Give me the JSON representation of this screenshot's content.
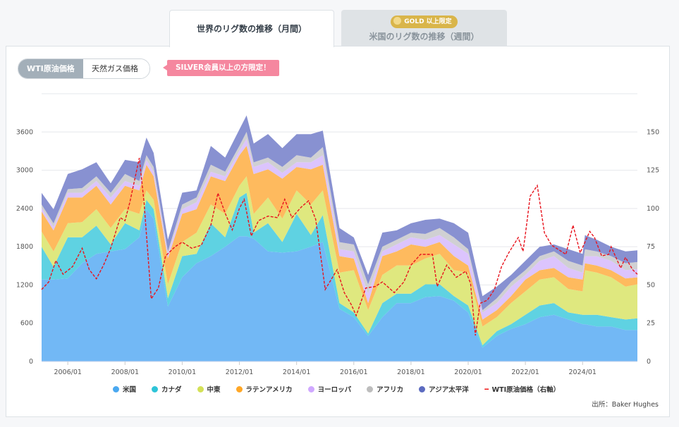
{
  "tabs": [
    {
      "label": "世界のリグ数の推移（月間）",
      "active": true
    },
    {
      "label": "米国のリグ数の推移（週間）",
      "badge": "GOLD 以上限定",
      "active": false
    }
  ],
  "toggle": {
    "options": [
      "WTI原油価格",
      "天然ガス価格"
    ],
    "selected": "WTI原油価格"
  },
  "notice": "SILVER会員以上の方限定！",
  "source": "出所：Baker Hughes",
  "chart_data": {
    "type": "area",
    "stacked": true,
    "left_axis": {
      "ticks": [
        "0",
        "600",
        "1200",
        "1800",
        "2400",
        "3000",
        "3600"
      ],
      "ylim": [
        0,
        4200
      ]
    },
    "right_axis": {
      "ticks": [
        "0",
        "25",
        "50",
        "75",
        "100",
        "125",
        "150"
      ],
      "ylim": [
        0,
        175
      ]
    },
    "x_ticks": [
      "2006/01",
      "2008/01",
      "2010/01",
      "2012/01",
      "2014/01",
      "2016/01",
      "2018/01",
      "2020/01",
      "2022/01",
      "2024/01"
    ],
    "xlim": [
      "2005/02",
      "2025/12"
    ],
    "grid": true,
    "legend_position": "bottom",
    "x": [
      "2005/02",
      "2005/07",
      "2006/01",
      "2006/07",
      "2007/01",
      "2007/07",
      "2008/01",
      "2008/07",
      "2008/10",
      "2009/01",
      "2009/07",
      "2010/01",
      "2010/07",
      "2011/01",
      "2011/07",
      "2012/01",
      "2012/04",
      "2012/07",
      "2013/01",
      "2013/07",
      "2014/01",
      "2014/07",
      "2014/12",
      "2015/07",
      "2016/01",
      "2016/07",
      "2017/01",
      "2017/07",
      "2018/01",
      "2018/07",
      "2019/01",
      "2019/07",
      "2020/01",
      "2020/07",
      "2021/01",
      "2021/07",
      "2022/01",
      "2022/07",
      "2023/01",
      "2023/07",
      "2024/01",
      "2024/02",
      "2024/07",
      "2025/01",
      "2025/07",
      "2025/12"
    ],
    "series": [
      {
        "name": "米国",
        "color": "#72b8f5",
        "legend_color": "#4aa8f0",
        "values": [
          1284,
          1284,
          1303,
          1542,
          1689,
          1726,
          1763,
          1947,
          2388,
          2241,
          861,
          1321,
          1542,
          1652,
          1800,
          1965,
          1965,
          1928,
          1726,
          1708,
          1726,
          1800,
          1873,
          824,
          695,
          401,
          695,
          916,
          916,
          1008,
          1027,
          953,
          769,
          217,
          401,
          512,
          585,
          695,
          732,
          659,
          585,
          585,
          548,
          548,
          493,
          493
        ]
      },
      {
        "name": "カナダ",
        "color": "#5fd2e2",
        "legend_color": "#2ec4d8",
        "values": [
          515,
          202,
          644,
          405,
          442,
          110,
          405,
          110,
          147,
          147,
          129,
          331,
          147,
          515,
          147,
          607,
          681,
          92,
          442,
          166,
          589,
          184,
          423,
          92,
          74,
          37,
          221,
          147,
          147,
          202,
          184,
          74,
          110,
          37,
          74,
          74,
          147,
          184,
          184,
          110,
          147,
          147,
          184,
          147,
          166,
          184
        ]
      },
      {
        "name": "中東",
        "color": "#dfe87f",
        "legend_color": "#d4e157",
        "values": [
          239,
          239,
          221,
          239,
          258,
          258,
          221,
          258,
          147,
          147,
          221,
          221,
          331,
          294,
          368,
          184,
          258,
          294,
          405,
          368,
          368,
          478,
          386,
          478,
          662,
          368,
          442,
          442,
          442,
          405,
          478,
          405,
          515,
          294,
          221,
          331,
          368,
          405,
          405,
          368,
          368,
          699,
          662,
          626,
          515,
          533
        ]
      },
      {
        "name": "ラテンアメリカ",
        "color": "#feba5e",
        "legend_color": "#ffa726",
        "values": [
          313,
          331,
          405,
          386,
          368,
          368,
          368,
          368,
          405,
          368,
          405,
          442,
          368,
          442,
          515,
          478,
          478,
          626,
          442,
          626,
          368,
          552,
          405,
          258,
          184,
          110,
          294,
          221,
          331,
          184,
          184,
          221,
          110,
          110,
          110,
          110,
          184,
          147,
          147,
          184,
          184,
          110,
          110,
          110,
          129,
          110
        ]
      },
      {
        "name": "ヨーロッパ",
        "color": "#dcc4fd",
        "legend_color": "#d0a8ff",
        "values": [
          55,
          55,
          74,
          74,
          74,
          110,
          74,
          74,
          74,
          74,
          74,
          74,
          110,
          74,
          74,
          74,
          110,
          110,
          110,
          92,
          74,
          110,
          147,
          110,
          110,
          147,
          74,
          110,
          110,
          110,
          110,
          184,
          184,
          110,
          110,
          147,
          74,
          147,
          184,
          147,
          110,
          110,
          147,
          147,
          129,
          129
        ]
      },
      {
        "name": "アフリカ",
        "color": "#d0d0d3",
        "legend_color": "#bdbdbd",
        "values": [
          55,
          55,
          55,
          74,
          74,
          74,
          110,
          74,
          74,
          74,
          37,
          74,
          74,
          110,
          74,
          74,
          110,
          74,
          74,
          92,
          110,
          74,
          129,
          110,
          110,
          147,
          74,
          74,
          74,
          92,
          110,
          110,
          74,
          37,
          74,
          74,
          74,
          74,
          74,
          110,
          110,
          110,
          74,
          74,
          110,
          110
        ]
      },
      {
        "name": "アジア太平洋",
        "color": "#8891d1",
        "legend_color": "#5c6bc0",
        "values": [
          184,
          221,
          239,
          294,
          221,
          147,
          221,
          294,
          276,
          221,
          184,
          184,
          110,
          294,
          221,
          258,
          258,
          294,
          368,
          294,
          331,
          368,
          258,
          221,
          110,
          147,
          221,
          147,
          147,
          221,
          147,
          221,
          258,
          221,
          184,
          110,
          147,
          147,
          110,
          184,
          184,
          221,
          184,
          147,
          184,
          184
        ]
      }
    ],
    "line": {
      "name": "WTI原油価格（右軸）",
      "color": "#e8141e",
      "axis": "right",
      "x": [
        "2005/02",
        "2005/05",
        "2005/08",
        "2005/11",
        "2006/03",
        "2006/07",
        "2006/10",
        "2007/01",
        "2007/04",
        "2007/07",
        "2007/11",
        "2008/01",
        "2008/03",
        "2008/07",
        "2008/09",
        "2008/12",
        "2009/03",
        "2009/06",
        "2009/10",
        "2010/01",
        "2010/05",
        "2010/09",
        "2011/01",
        "2011/04",
        "2011/07",
        "2011/10",
        "2012/01",
        "2012/03",
        "2012/06",
        "2012/09",
        "2013/01",
        "2013/05",
        "2013/08",
        "2013/11",
        "2014/03",
        "2014/06",
        "2014/09",
        "2014/12",
        "2015/01",
        "2015/06",
        "2015/09",
        "2015/12",
        "2016/02",
        "2016/06",
        "2016/10",
        "2017/01",
        "2017/06",
        "2017/10",
        "2018/01",
        "2018/05",
        "2018/10",
        "2018/12",
        "2019/04",
        "2019/08",
        "2019/12",
        "2020/02",
        "2020/04",
        "2020/06",
        "2020/09",
        "2020/12",
        "2021/03",
        "2021/06",
        "2021/10",
        "2021/12",
        "2022/01",
        "2022/03",
        "2022/06",
        "2022/09",
        "2022/12",
        "2023/03",
        "2023/06",
        "2023/09",
        "2023/12",
        "2024/04",
        "2024/06",
        "2024/09",
        "2024/12",
        "2025/01",
        "2025/05",
        "2025/07",
        "2025/10",
        "2025/12"
      ],
      "values": [
        47,
        52,
        66,
        57,
        62,
        74,
        60,
        54,
        63,
        74,
        94,
        92,
        104,
        133,
        104,
        41,
        48,
        69,
        75,
        78,
        74,
        76,
        89,
        110,
        97,
        86,
        100,
        106,
        82,
        92,
        95,
        94,
        106,
        94,
        101,
        105,
        93,
        59,
        47,
        60,
        45,
        37,
        30,
        48,
        49,
        52,
        45,
        52,
        63,
        70,
        70,
        49,
        63,
        55,
        59,
        51,
        17,
        38,
        40,
        47,
        62,
        71,
        81,
        72,
        83,
        108,
        115,
        84,
        76,
        73,
        70,
        89,
        71,
        85,
        81,
        69,
        70,
        75,
        61,
        68,
        60,
        57
      ]
    }
  }
}
